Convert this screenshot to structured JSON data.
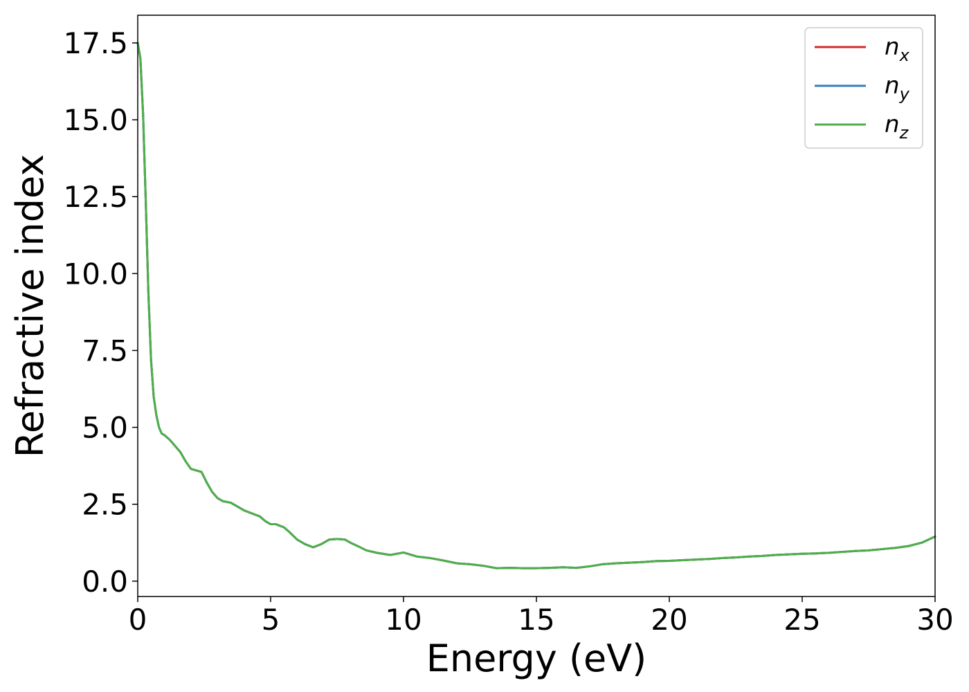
{
  "chart_data": {
    "type": "line",
    "title": "",
    "xlabel": "Energy (eV)",
    "ylabel": "Refractive index",
    "xlim": [
      0,
      30
    ],
    "ylim": [
      -0.5,
      18.4
    ],
    "x_ticks": [
      0,
      5,
      10,
      15,
      20,
      25,
      30
    ],
    "x_tick_labels": [
      "0",
      "5",
      "10",
      "15",
      "20",
      "25",
      "30"
    ],
    "y_ticks": [
      0,
      2.5,
      5,
      7.5,
      10,
      12.5,
      15,
      17.5
    ],
    "y_tick_labels": [
      "0.0",
      "2.5",
      "5.0",
      "7.5",
      "10.0",
      "12.5",
      "15.0",
      "17.5"
    ],
    "grid": false,
    "legend": {
      "position": "top-right"
    },
    "x": [
      0,
      0.1,
      0.2,
      0.3,
      0.4,
      0.5,
      0.6,
      0.7,
      0.8,
      0.9,
      1.0,
      1.2,
      1.4,
      1.6,
      1.8,
      2.0,
      2.2,
      2.4,
      2.6,
      2.8,
      3.0,
      3.2,
      3.5,
      3.8,
      4.0,
      4.3,
      4.6,
      4.8,
      5.0,
      5.2,
      5.5,
      5.7,
      6.0,
      6.3,
      6.6,
      6.9,
      7.2,
      7.5,
      7.8,
      8.0,
      8.3,
      8.6,
      9.0,
      9.5,
      10.0,
      10.5,
      11.0,
      11.5,
      12.0,
      12.5,
      13.0,
      13.5,
      14.0,
      14.5,
      15.0,
      15.5,
      16.0,
      16.5,
      17.0,
      17.5,
      18.0,
      18.5,
      19.0,
      19.5,
      20.0,
      20.5,
      21.0,
      21.5,
      22.0,
      22.5,
      23.0,
      23.5,
      24.0,
      24.5,
      25.0,
      25.5,
      26.0,
      26.5,
      27.0,
      27.5,
      28.0,
      28.5,
      29.0,
      29.5,
      30.0
    ],
    "series": [
      {
        "name": "n_x",
        "label_base": "n",
        "label_sub": "x",
        "color": "#d62728",
        "values": [
          17.5,
          17.0,
          15.2,
          12.4,
          9.4,
          7.2,
          6.0,
          5.4,
          5.0,
          4.8,
          4.75,
          4.6,
          4.4,
          4.2,
          3.9,
          3.65,
          3.6,
          3.55,
          3.2,
          2.9,
          2.7,
          2.6,
          2.55,
          2.4,
          2.3,
          2.2,
          2.1,
          1.95,
          1.85,
          1.85,
          1.75,
          1.6,
          1.35,
          1.2,
          1.1,
          1.2,
          1.35,
          1.37,
          1.35,
          1.25,
          1.13,
          1.0,
          0.92,
          0.85,
          0.93,
          0.8,
          0.75,
          0.67,
          0.58,
          0.55,
          0.5,
          0.42,
          0.43,
          0.42,
          0.42,
          0.43,
          0.45,
          0.43,
          0.48,
          0.55,
          0.58,
          0.6,
          0.62,
          0.65,
          0.66,
          0.68,
          0.7,
          0.72,
          0.75,
          0.77,
          0.8,
          0.82,
          0.85,
          0.87,
          0.89,
          0.9,
          0.92,
          0.95,
          0.98,
          1.0,
          1.04,
          1.08,
          1.14,
          1.25,
          1.45
        ]
      },
      {
        "name": "n_y",
        "label_base": "n",
        "label_sub": "y",
        "color": "#377eb8",
        "values": [
          17.5,
          17.0,
          15.2,
          12.4,
          9.4,
          7.2,
          6.0,
          5.4,
          5.0,
          4.8,
          4.75,
          4.6,
          4.4,
          4.2,
          3.9,
          3.65,
          3.6,
          3.55,
          3.2,
          2.9,
          2.7,
          2.6,
          2.55,
          2.4,
          2.3,
          2.2,
          2.1,
          1.95,
          1.85,
          1.85,
          1.75,
          1.6,
          1.35,
          1.2,
          1.1,
          1.2,
          1.35,
          1.37,
          1.35,
          1.25,
          1.13,
          1.0,
          0.92,
          0.85,
          0.93,
          0.8,
          0.75,
          0.67,
          0.58,
          0.55,
          0.5,
          0.42,
          0.43,
          0.42,
          0.42,
          0.43,
          0.45,
          0.43,
          0.48,
          0.55,
          0.58,
          0.6,
          0.62,
          0.65,
          0.66,
          0.68,
          0.7,
          0.72,
          0.75,
          0.77,
          0.8,
          0.82,
          0.85,
          0.87,
          0.89,
          0.9,
          0.92,
          0.95,
          0.98,
          1.0,
          1.04,
          1.08,
          1.14,
          1.25,
          1.45
        ]
      },
      {
        "name": "n_z",
        "label_base": "n",
        "label_sub": "z",
        "color": "#4daf4a",
        "values": [
          17.5,
          17.0,
          15.2,
          12.4,
          9.4,
          7.2,
          6.0,
          5.4,
          5.0,
          4.8,
          4.75,
          4.6,
          4.4,
          4.2,
          3.9,
          3.65,
          3.6,
          3.55,
          3.2,
          2.9,
          2.7,
          2.6,
          2.55,
          2.4,
          2.3,
          2.2,
          2.1,
          1.95,
          1.85,
          1.85,
          1.75,
          1.6,
          1.35,
          1.2,
          1.1,
          1.2,
          1.35,
          1.37,
          1.35,
          1.25,
          1.13,
          1.0,
          0.92,
          0.85,
          0.93,
          0.8,
          0.75,
          0.67,
          0.58,
          0.55,
          0.5,
          0.42,
          0.43,
          0.42,
          0.42,
          0.43,
          0.45,
          0.43,
          0.48,
          0.55,
          0.58,
          0.6,
          0.62,
          0.65,
          0.66,
          0.68,
          0.7,
          0.72,
          0.75,
          0.77,
          0.8,
          0.82,
          0.85,
          0.87,
          0.89,
          0.9,
          0.92,
          0.95,
          0.98,
          1.0,
          1.04,
          1.08,
          1.14,
          1.25,
          1.45
        ]
      }
    ]
  }
}
